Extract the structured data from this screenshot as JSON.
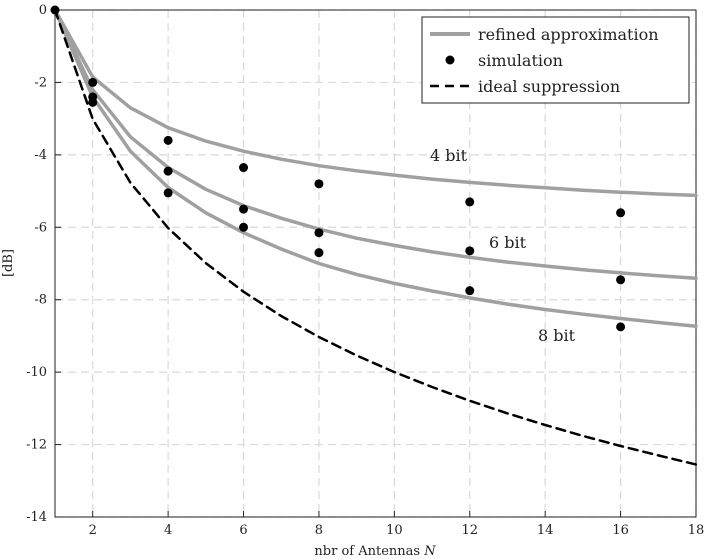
{
  "chart_data": {
    "type": "line",
    "xlabel": "nbr of Antennas N",
    "ylabel": "[dB]",
    "xlim": [
      1,
      18
    ],
    "ylim": [
      -14,
      0
    ],
    "xticks": [
      2,
      4,
      6,
      8,
      10,
      12,
      14,
      16,
      18
    ],
    "yticks": [
      0,
      -2,
      -4,
      -6,
      -8,
      -10,
      -12,
      -14
    ],
    "grid": true,
    "legend_position": "top-right",
    "legend": [
      "refined approximation",
      "simulation",
      "ideal suppression"
    ],
    "annotations": [
      "4 bit",
      "6 bit",
      "8 bit"
    ],
    "colors": {
      "approx": "#a0a0a0",
      "sim": "#000000",
      "ideal": "#000000",
      "grid": "#d9d9d9"
    },
    "series": [
      {
        "name": "refined approximation 4 bit",
        "style": "solid-gray",
        "x": [
          1,
          2,
          3,
          4,
          5,
          6,
          7,
          8,
          9,
          10,
          11,
          12,
          13,
          14,
          15,
          16,
          17,
          18
        ],
        "y": [
          0,
          -1.85,
          -2.7,
          -3.25,
          -3.62,
          -3.9,
          -4.12,
          -4.3,
          -4.44,
          -4.56,
          -4.67,
          -4.76,
          -4.84,
          -4.91,
          -4.98,
          -5.03,
          -5.08,
          -5.12
        ]
      },
      {
        "name": "refined approximation 6 bit",
        "style": "solid-gray",
        "x": [
          1,
          2,
          3,
          4,
          5,
          6,
          7,
          8,
          9,
          10,
          11,
          12,
          13,
          14,
          15,
          16,
          17,
          18
        ],
        "y": [
          0,
          -2.2,
          -3.5,
          -4.35,
          -4.95,
          -5.4,
          -5.75,
          -6.05,
          -6.3,
          -6.5,
          -6.68,
          -6.83,
          -6.96,
          -7.07,
          -7.17,
          -7.26,
          -7.34,
          -7.41
        ]
      },
      {
        "name": "refined approximation 8 bit",
        "style": "solid-gray",
        "x": [
          1,
          2,
          3,
          4,
          5,
          6,
          7,
          8,
          9,
          10,
          11,
          12,
          13,
          14,
          15,
          16,
          17,
          18
        ],
        "y": [
          0,
          -2.4,
          -3.9,
          -4.9,
          -5.6,
          -6.15,
          -6.6,
          -7.0,
          -7.3,
          -7.55,
          -7.76,
          -7.95,
          -8.12,
          -8.27,
          -8.4,
          -8.52,
          -8.63,
          -8.73
        ]
      },
      {
        "name": "ideal suppression",
        "style": "dashed-black",
        "x": [
          1,
          2,
          3,
          4,
          5,
          6,
          7,
          8,
          9,
          10,
          11,
          12,
          13,
          14,
          15,
          16,
          17,
          18
        ],
        "y": [
          0,
          -3.01,
          -4.77,
          -6.02,
          -6.99,
          -7.78,
          -8.45,
          -9.03,
          -9.54,
          -10.0,
          -10.41,
          -10.79,
          -11.14,
          -11.46,
          -11.76,
          -12.04,
          -12.3,
          -12.55
        ]
      },
      {
        "name": "simulation",
        "style": "dots",
        "points": [
          [
            1,
            0
          ],
          [
            2,
            -2.0
          ],
          [
            2,
            -2.4
          ],
          [
            2,
            -2.55
          ],
          [
            4,
            -3.6
          ],
          [
            4,
            -4.45
          ],
          [
            4,
            -5.05
          ],
          [
            6,
            -4.35
          ],
          [
            6,
            -5.5
          ],
          [
            6,
            -6.0
          ],
          [
            8,
            -4.8
          ],
          [
            8,
            -6.15
          ],
          [
            8,
            -6.7
          ],
          [
            12,
            -5.3
          ],
          [
            12,
            -6.65
          ],
          [
            12,
            -7.75
          ],
          [
            16,
            -5.6
          ],
          [
            16,
            -7.45
          ],
          [
            16,
            -8.75
          ]
        ]
      }
    ]
  }
}
